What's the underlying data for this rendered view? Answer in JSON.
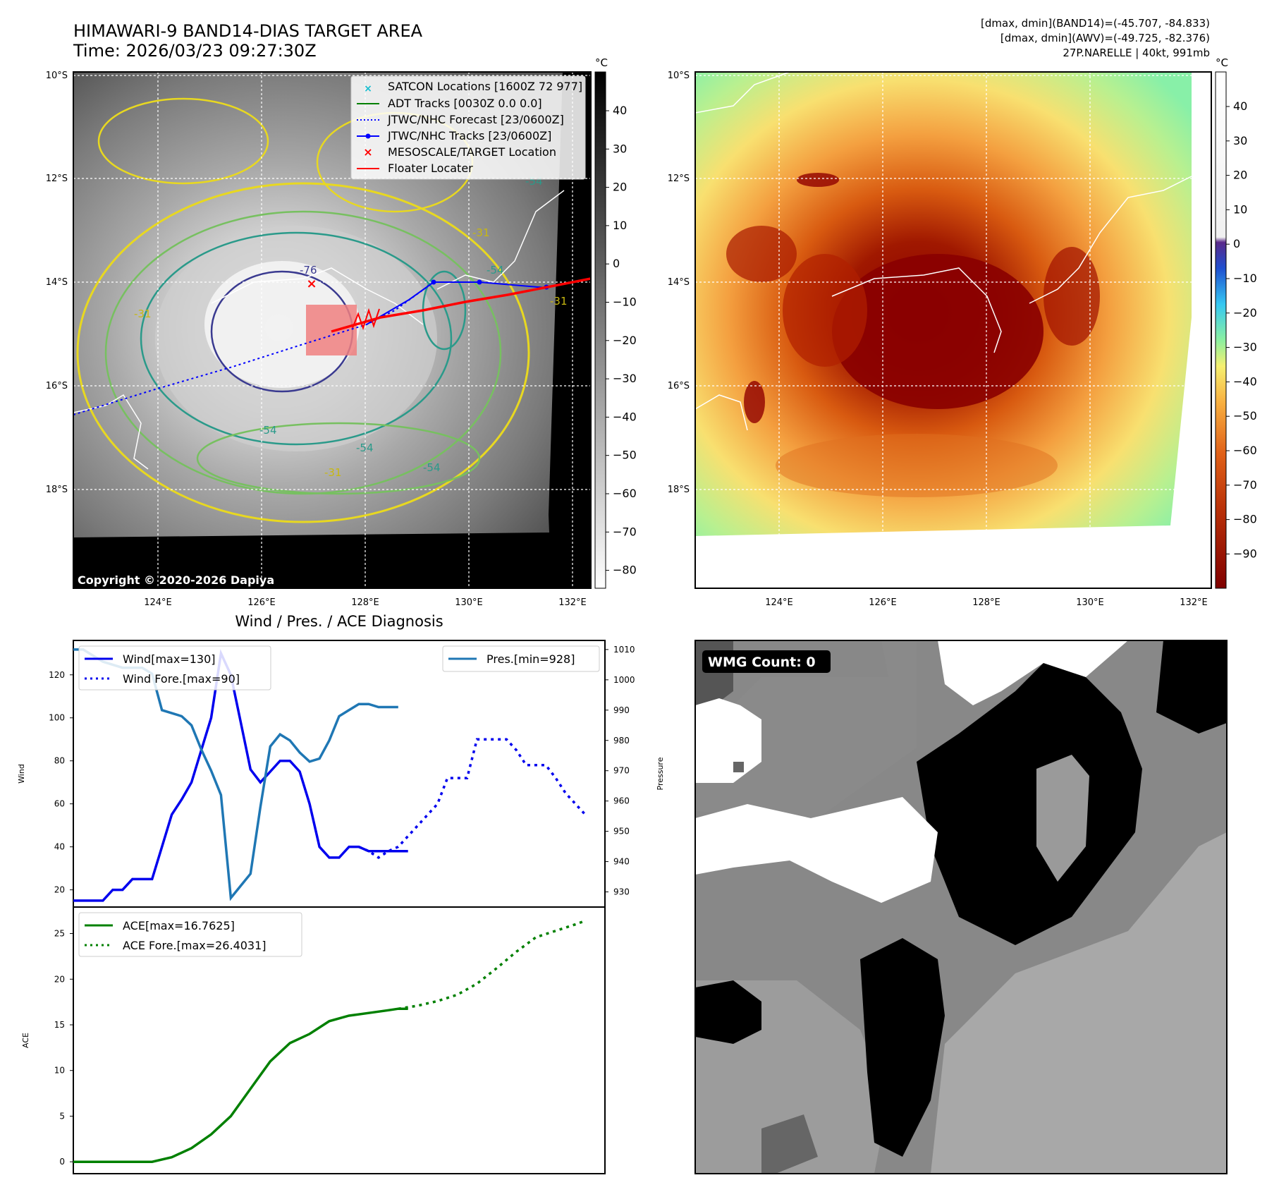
{
  "header": {
    "title_line1": "HIMAWARI-9 BAND14-DIAS TARGET AREA",
    "title_line2": "Time: 2026/03/23 09:27:30Z",
    "info_line1": "[dmax, dmin](BAND14)=(-45.707, -84.833)",
    "info_line2": "[dmax, dmin](AWV)=(-49.725, -82.376)",
    "info_line3": "27P.NARELLE | 40kt, 991mb"
  },
  "map": {
    "lon_labels": [
      "124°E",
      "126°E",
      "128°E",
      "130°E",
      "132°E"
    ],
    "lat_labels": [
      "10°S",
      "12°S",
      "14°S",
      "16°S",
      "18°S"
    ],
    "copyright": "Copyright © 2020-2026 Dapiya",
    "contour_labels": [
      "-76",
      "-54",
      "-31",
      "-54",
      "-31",
      "-54",
      "-31",
      "-54",
      "-31",
      "-54"
    ],
    "legend": [
      {
        "label": "SATCON Locations [1600Z 72 977]",
        "color": "#17becf"
      },
      {
        "label": "ADT Tracks [0030Z 0.0 0.0]",
        "color": "#008000"
      },
      {
        "label": "JTWC/NHC Forecast [23/0600Z]",
        "color": "#0000ff"
      },
      {
        "label": "JTWC/NHC Tracks [23/0600Z]",
        "color": "#0000ff"
      },
      {
        "label": "MESOSCALE/TARGET Location",
        "color": "#ff0000"
      },
      {
        "label": "Floater Locater",
        "color": "#ff0000"
      }
    ],
    "colorbar_gray": {
      "unit": "°C",
      "ticks": [
        "40",
        "30",
        "20",
        "10",
        "0",
        "−10",
        "−20",
        "−30",
        "−40",
        "−50",
        "−60",
        "−70",
        "−80"
      ]
    },
    "colorbar_color": {
      "unit": "°C",
      "ticks": [
        "40",
        "30",
        "20",
        "10",
        "0",
        "−10",
        "−20",
        "−30",
        "−40",
        "−50",
        "−60",
        "−70",
        "−80",
        "−90"
      ]
    }
  },
  "wmg": {
    "label": "WMG Count: 0"
  },
  "chart_data": [
    {
      "type": "line",
      "title": "Wind / Pres. / ACE Diagnosis",
      "ylabel": "Wind",
      "ylabel_right": "Pressure",
      "ylim": [
        12,
        136
      ],
      "ylim_right": [
        925,
        1013
      ],
      "xlim": [
        0,
        54
      ],
      "yticks": [
        20,
        40,
        60,
        80,
        100,
        120
      ],
      "yticks_right": [
        930,
        940,
        950,
        960,
        970,
        980,
        990,
        1000,
        1010
      ],
      "legend_left": [
        "Wind[max=130]",
        "Wind Fore.[max=90]"
      ],
      "legend_right": [
        "Pres.[min=928]"
      ],
      "series": [
        {
          "name": "Wind",
          "style": "solid",
          "color": "#0000ee",
          "x": [
            0,
            1,
            2,
            3,
            4,
            5,
            6,
            7,
            8,
            9,
            10,
            11,
            12,
            13,
            14,
            15,
            16,
            17,
            18,
            19,
            20,
            21,
            22,
            23,
            24,
            25,
            26,
            27,
            28,
            29,
            30,
            31,
            32,
            33,
            34
          ],
          "values": [
            15,
            15,
            15,
            15,
            20,
            20,
            25,
            25,
            25,
            40,
            55,
            62,
            70,
            85,
            100,
            130,
            120,
            98,
            76,
            70,
            75,
            80,
            80,
            75,
            60,
            40,
            35,
            35,
            40,
            40,
            38,
            38,
            38,
            38,
            38
          ]
        },
        {
          "name": "Wind Fore.",
          "style": "dotted",
          "color": "#0000ee",
          "x": [
            29,
            30,
            31,
            32,
            33,
            34,
            35,
            36,
            37,
            38,
            39,
            40,
            41,
            42,
            43,
            44,
            45,
            46,
            47,
            48,
            49,
            50,
            51,
            52
          ],
          "values": [
            40,
            38,
            35,
            38,
            40,
            45,
            50,
            55,
            60,
            72,
            72,
            72,
            90,
            90,
            90,
            90,
            85,
            78,
            78,
            78,
            72,
            65,
            60,
            55
          ]
        },
        {
          "name": "Pres.",
          "style": "solid",
          "color": "#1f77b4",
          "x": [
            0,
            1,
            2,
            3,
            4,
            5,
            6,
            7,
            8,
            9,
            10,
            11,
            12,
            13,
            14,
            15,
            16,
            17,
            18,
            19,
            20,
            21,
            22,
            23,
            24,
            25,
            26,
            27,
            28,
            29,
            30,
            31,
            32,
            33
          ],
          "values": [
            1010,
            1010,
            1008,
            1006,
            1005,
            1004,
            1004,
            1004,
            1002,
            990,
            989,
            988,
            985,
            977,
            970,
            962,
            928,
            932,
            936,
            958,
            978,
            982,
            980,
            976,
            973,
            974,
            980,
            988,
            990,
            992,
            992,
            991,
            991,
            991
          ]
        }
      ]
    },
    {
      "type": "line",
      "ylabel": "ACE",
      "ylim": [
        -1.3,
        27.9
      ],
      "xlim": [
        0,
        54
      ],
      "yticks": [
        0,
        5,
        10,
        15,
        20,
        25
      ],
      "legend": [
        "ACE[max=16.7625]",
        "ACE Fore.[max=26.4031]"
      ],
      "series": [
        {
          "name": "ACE",
          "style": "solid",
          "color": "#008000",
          "x": [
            0,
            2,
            4,
            6,
            8,
            10,
            12,
            14,
            16,
            18,
            20,
            22,
            24,
            26,
            28,
            30,
            32,
            33,
            34
          ],
          "values": [
            0,
            0,
            0,
            0,
            0,
            0.5,
            1.5,
            3,
            5,
            8,
            11,
            13,
            14,
            15.4,
            16,
            16.3,
            16.6,
            16.76,
            16.76
          ]
        },
        {
          "name": "ACE Fore.",
          "style": "dotted",
          "color": "#008000",
          "x": [
            33,
            35,
            37,
            39,
            41,
            43,
            45,
            47,
            49,
            51,
            52
          ],
          "values": [
            16.76,
            17.1,
            17.6,
            18.3,
            19.5,
            21.2,
            23,
            24.6,
            25.3,
            26.0,
            26.4
          ]
        }
      ]
    }
  ]
}
